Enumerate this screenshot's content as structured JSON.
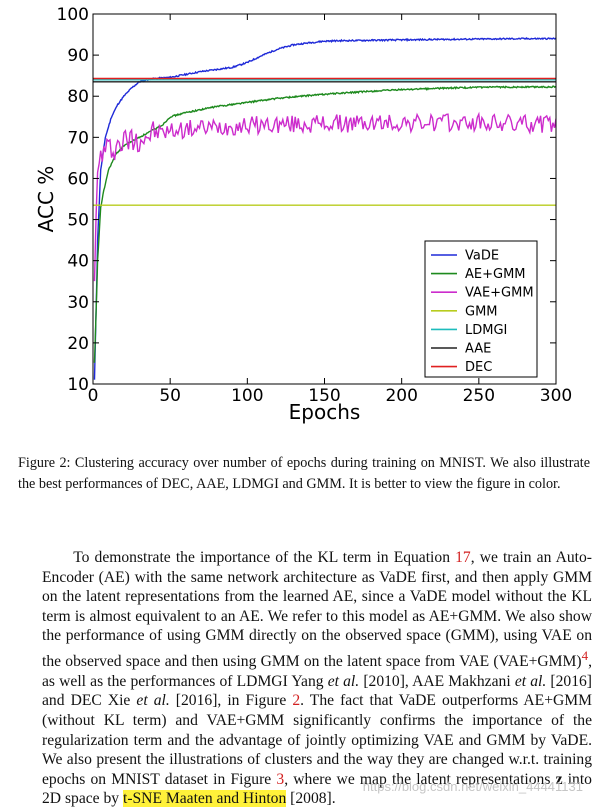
{
  "chart_data": {
    "type": "line",
    "title": "",
    "xlabel": "Epochs",
    "ylabel": "ACC %",
    "xlim": [
      0,
      300
    ],
    "ylim": [
      10,
      100
    ],
    "xticks": [
      "0",
      "50",
      "100",
      "150",
      "200",
      "250",
      "300"
    ],
    "yticks": [
      "10",
      "20",
      "30",
      "40",
      "50",
      "60",
      "70",
      "80",
      "90",
      "100"
    ],
    "grid": false,
    "legend_position": "lower-right",
    "series": [
      {
        "name": "VaDE",
        "color": "#1f2ad8",
        "style": "curve",
        "x": [
          1,
          3,
          5,
          8,
          12,
          16,
          20,
          25,
          30,
          35,
          40,
          50,
          60,
          70,
          80,
          90,
          100,
          110,
          120,
          130,
          140,
          150,
          160,
          180,
          200,
          220,
          250,
          280,
          300
        ],
        "y": [
          11,
          45,
          62,
          70,
          75,
          78,
          80,
          82,
          83.5,
          84,
          84.3,
          84.6,
          85.3,
          86,
          86.5,
          87,
          88.2,
          90,
          91.5,
          92.5,
          93,
          93.4,
          93.5,
          93.6,
          93.7,
          93.8,
          93.9,
          94,
          94
        ]
      },
      {
        "name": "AE+GMM",
        "color": "#1e8a1e",
        "style": "curve",
        "x": [
          1,
          3,
          5,
          7,
          10,
          15,
          20,
          30,
          40,
          45,
          50,
          60,
          80,
          100,
          120,
          150,
          180,
          200,
          230,
          260,
          300
        ],
        "y": [
          15,
          40,
          53,
          57,
          62,
          66,
          68,
          70,
          72,
          73,
          75,
          76,
          77.5,
          78.5,
          79.5,
          80.5,
          81.2,
          81.6,
          82,
          82.2,
          82.3
        ]
      },
      {
        "name": "VAE+GMM",
        "color": "#cc2ccc",
        "style": "noisy",
        "x": [
          1,
          3,
          5,
          10,
          20,
          30,
          40,
          60,
          80,
          100,
          150,
          200,
          250,
          300
        ],
        "y": [
          38,
          60,
          66,
          67,
          69,
          70,
          71,
          72,
          72.5,
          73,
          73.3,
          73.5,
          73.5,
          73.2
        ],
        "noise": 2.2
      },
      {
        "name": "GMM",
        "color": "#b8cc1e",
        "style": "flat",
        "value": 53.5
      },
      {
        "name": "LDMGI",
        "color": "#1ebcbc",
        "style": "flat",
        "value": 84.0
      },
      {
        "name": "AAE",
        "color": "#222222",
        "style": "flat",
        "value": 83.5
      },
      {
        "name": "DEC",
        "color": "#e02020",
        "style": "flat",
        "value": 84.3
      }
    ]
  },
  "caption": "Figure 2: Clustering accuracy over number of epochs during training on MNIST. We also illustrate the best performances of DEC, AAE, LDMGI and GMM. It is better to view the figure in color.",
  "paragraph": {
    "s1": "To demonstrate the importance of the KL term in Equation ",
    "ref_eq": "17",
    "s2": ", we train an Auto-Encoder (AE) with the same network architecture as VaDE first, and then apply GMM on the latent representations from the learned AE, since a VaDE model without the KL term is almost equivalent to an AE. We refer to this model as AE+GMM. We also show the performance of using GMM directly on the observed space (GMM), using VAE on the observed space and then using GMM on the latent space from VAE (VAE+GMM)",
    "ref_fn": "4",
    "s3": ", as well as the performances of LDMGI Yang ",
    "etal1": "et al.",
    "s4": " [2010], AAE Makhzani ",
    "etal2": "et al.",
    "s5": " [2016] and DEC Xie ",
    "etal3": "et al.",
    "s6": " [2016], in Figure ",
    "ref_fig2": "2",
    "s7": ".  The fact that VaDE outperforms AE+GMM (without KL term) and VAE+GMM significantly confirms the importance of the regularization term and the advantage of jointly optimizing VAE and GMM by VaDE. We also present the illustrations of clusters and the way they are changed w.r.t. training epochs on MNIST dataset in Figure ",
    "ref_fig3": "3",
    "s8": ", where we map the latent representations ",
    "z": "z",
    "s9": " into 2D space by ",
    "highlight": "t-SNE Maaten and Hinton",
    "s10": " [2008]."
  },
  "watermark": "https://blog.csdn.net/weixin_44441131"
}
